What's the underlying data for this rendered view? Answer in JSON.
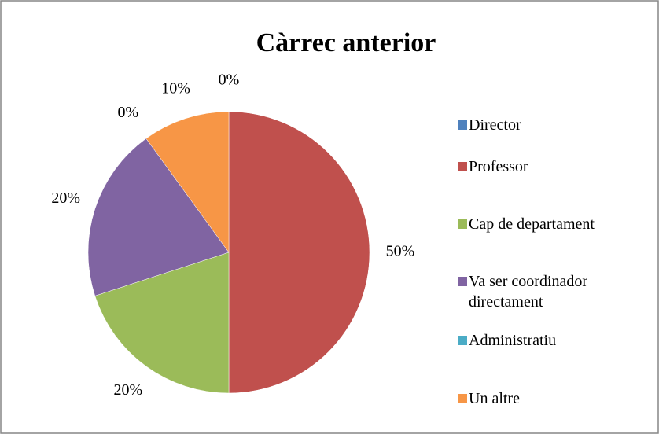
{
  "chart_data": {
    "type": "pie",
    "title": "Càrrec anterior",
    "categories": [
      "Director",
      "Professor",
      "Cap de departament",
      "Va ser coordinador directament",
      "Administratiu",
      "Un altre"
    ],
    "values": [
      0,
      50,
      20,
      20,
      0,
      10
    ],
    "value_labels": [
      "0%",
      "50%",
      "20%",
      "20%",
      "0%",
      "10%"
    ],
    "colors": [
      "#4f81bd",
      "#c0504d",
      "#9bbb59",
      "#8064a2",
      "#4bacc6",
      "#f79646"
    ],
    "legend": "right"
  }
}
